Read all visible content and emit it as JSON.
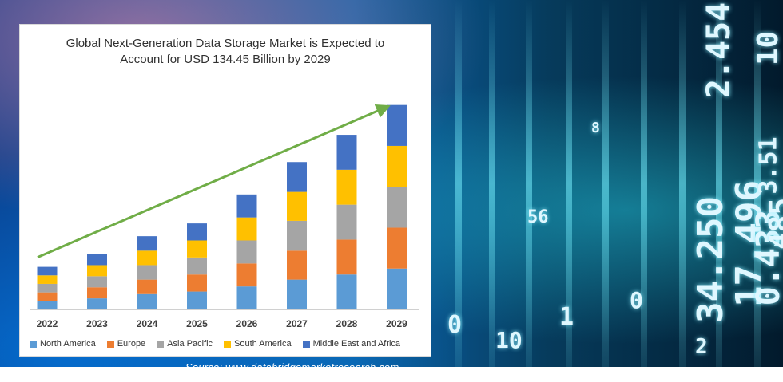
{
  "source_text": "Source: www.databridgemarketresearch.com",
  "background_glyphs": [
    "34.250",
    "17.496",
    "0.433",
    "485",
    "2.454",
    "10",
    "0",
    "1",
    "0",
    "10",
    "56",
    "8",
    "2",
    "3.51"
  ],
  "chart_data": {
    "type": "bar",
    "stacked": true,
    "title_line1": "Global Next-Generation Data Storage Market is Expected to",
    "title_line2": "Account for USD 134.45 Billion by 2029",
    "categories": [
      "2022",
      "2023",
      "2024",
      "2025",
      "2026",
      "2027",
      "2028",
      "2029"
    ],
    "series": [
      {
        "name": "North America",
        "color": "#5b9bd5",
        "values": [
          10,
          13,
          18,
          21,
          27,
          35,
          41,
          48
        ]
      },
      {
        "name": "Europe",
        "color": "#ed7d31",
        "values": [
          10,
          13,
          17,
          20,
          27,
          34,
          41,
          48
        ]
      },
      {
        "name": "Asia Pacific",
        "color": "#a5a5a5",
        "values": [
          10,
          13,
          17,
          20,
          27,
          35,
          41,
          48
        ]
      },
      {
        "name": "South America",
        "color": "#ffc000",
        "values": [
          10,
          13,
          17,
          20,
          27,
          34,
          41,
          48
        ]
      },
      {
        "name": "Middle East and Africa",
        "color": "#4472c4",
        "values": [
          10,
          13,
          17,
          20,
          27,
          35,
          41,
          48
        ]
      }
    ],
    "ylim": [
      0,
      250
    ],
    "grid": false,
    "legend_position": "bottom",
    "trend_arrow": true,
    "trend_arrow_color": "#70ad47",
    "xlabel": "",
    "ylabel": ""
  }
}
